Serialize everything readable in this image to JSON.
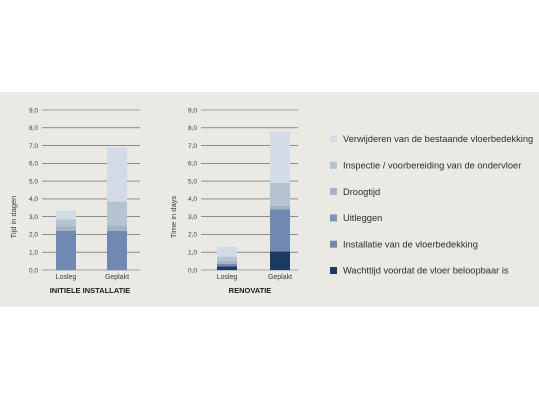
{
  "colors": {
    "panel_bg": "#ebe9e3",
    "grid": "#555555",
    "segments": [
      "#1c3a63",
      "#7088b2",
      "#7a95bd",
      "#a3b2c4",
      "#b6c3d1",
      "#d3dce6"
    ]
  },
  "chart_data": [
    {
      "type": "bar",
      "stacked": true,
      "title": "INITIELE INSTALLATIE",
      "ylabel": "Tijd in dagen",
      "ylim": [
        0,
        9
      ],
      "yticks": [
        "0,0",
        "1,0",
        "2,0",
        "3,0",
        "4,0",
        "5,0",
        "6,0",
        "7,0",
        "8,0",
        "9,0"
      ],
      "grid": true,
      "categories": [
        "Losleg",
        "Geplakt"
      ],
      "series": [
        {
          "name": "Wachttijd voordat de vloer beloopbaar is",
          "values": [
            0,
            0
          ]
        },
        {
          "name": "Installatie van de vloerbedekking",
          "values": [
            2.2,
            2.2
          ]
        },
        {
          "name": "Uitleggen",
          "values": [
            0,
            0
          ]
        },
        {
          "name": "Droogtijd",
          "values": [
            0.25,
            0.3
          ]
        },
        {
          "name": "Inspectie / voorbereiding van de ondervloer",
          "values": [
            0.4,
            1.35
          ]
        },
        {
          "name": "Verwijderen van de bestaande vloerbedekking",
          "values": [
            0.5,
            3.05
          ]
        }
      ]
    },
    {
      "type": "bar",
      "stacked": true,
      "title": "RENOVATIE",
      "ylabel": "Time in days",
      "ylim": [
        0,
        9
      ],
      "yticks": [
        "0,0",
        "1,0",
        "2,0",
        "3,0",
        "4,0",
        "5,0",
        "6,0",
        "7,0",
        "8,0",
        "9,0"
      ],
      "grid": true,
      "categories": [
        "Losleg",
        "Geplakt"
      ],
      "series": [
        {
          "name": "Wachttijd voordat de vloer beloopbaar is",
          "values": [
            0.2,
            1.05
          ]
        },
        {
          "name": "Installatie van de vloerbedekking",
          "values": [
            0.15,
            2.35
          ]
        },
        {
          "name": "Uitleggen",
          "values": [
            0,
            0
          ]
        },
        {
          "name": "Droogtijd",
          "values": [
            0.15,
            0.2
          ]
        },
        {
          "name": "Inspectie / voorbereiding van de ondervloer",
          "values": [
            0.25,
            1.3
          ]
        },
        {
          "name": "Verwijderen van de bestaande vloerbedekking",
          "values": [
            0.55,
            2.9
          ]
        }
      ]
    }
  ],
  "legend": {
    "placement": "right",
    "items": [
      {
        "label": "Verwijderen van de bestaande vloerbedekking",
        "color": "#d3dce6"
      },
      {
        "label": "Inspectie / voorbereiding van de ondervloer",
        "color": "#b6c3d1"
      },
      {
        "label": "Droogtijd",
        "color": "#a3b2c4"
      },
      {
        "label": "Uitleggen",
        "color": "#7a95bd"
      },
      {
        "label": "Installatie van de vloerbedekking",
        "color": "#7088b2"
      },
      {
        "label": "Wachttijd voordat de vloer beloopbaar is",
        "color": "#1c3a63"
      }
    ]
  }
}
